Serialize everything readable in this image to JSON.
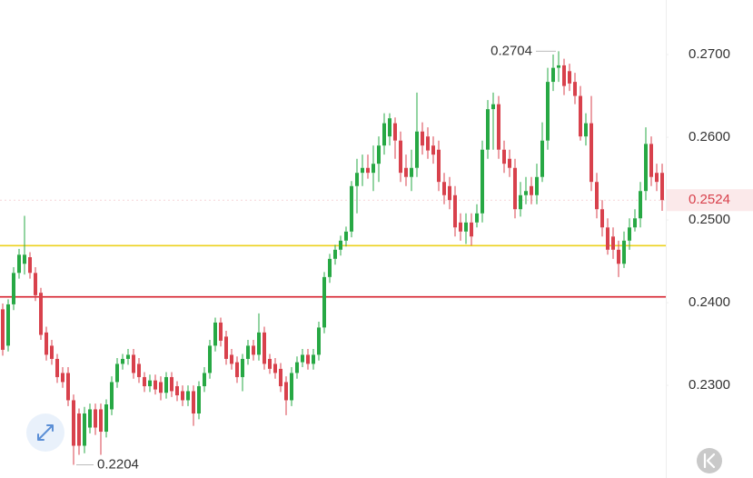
{
  "chart_data": {
    "type": "candlestick",
    "up_color": "#27a844",
    "down_color": "#d8414c",
    "ylim": [
      0.2188,
      0.2766
    ],
    "yticks": [
      {
        "value": 0.27,
        "label": "0.2700"
      },
      {
        "value": 0.26,
        "label": "0.2600"
      },
      {
        "value": 0.25,
        "label": "0.2500"
      },
      {
        "value": 0.24,
        "label": "0.2400"
      },
      {
        "value": 0.23,
        "label": "0.2300"
      }
    ],
    "levels": [
      {
        "value": 0.2469,
        "color": "#ecd21c"
      },
      {
        "value": 0.2407,
        "color": "#d6202c"
      }
    ],
    "last_price": {
      "value": 0.2524,
      "label": "0.2524"
    },
    "high_label": {
      "value": 0.2704,
      "label": "0.2704"
    },
    "low_label": {
      "value": 0.2204,
      "label": "0.2204"
    },
    "open": [
      0.2392,
      0.2348,
      0.2398,
      0.2436,
      0.2447,
      0.2455,
      0.2436,
      0.2412,
      0.2364,
      0.2348,
      0.2332,
      0.2315,
      0.2315,
      0.2282,
      0.2266,
      0.2227,
      0.2249,
      0.2271,
      0.2271,
      0.2244,
      0.2271,
      0.2304,
      0.2326,
      0.2332,
      0.2337,
      0.2326,
      0.231,
      0.2299,
      0.2306,
      0.2304,
      0.2291,
      0.231,
      0.2299,
      0.2293,
      0.2282,
      0.2293,
      0.2266,
      0.2299,
      0.2315,
      0.2348,
      0.2376,
      0.2359,
      0.2337,
      0.2328,
      0.231,
      0.2332,
      0.2348,
      0.2337,
      0.2364,
      0.2332,
      0.2326,
      0.232,
      0.2304,
      0.2282,
      0.2315,
      0.2328,
      0.2337,
      0.2326,
      0.2337,
      0.237,
      0.2431,
      0.2453,
      0.2464,
      0.2475,
      0.2486,
      0.2541,
      0.2557,
      0.2563,
      0.2557,
      0.2568,
      0.259,
      0.2601,
      0.2617,
      0.2596,
      0.2563,
      0.2552,
      0.2563,
      0.2607,
      0.2601,
      0.259,
      0.2585,
      0.2546,
      0.2541,
      0.253,
      0.2497,
      0.2486,
      0.2497,
      0.2497,
      0.2508,
      0.2585,
      0.2634,
      0.264,
      0.2585,
      0.2574,
      0.2563,
      0.2513,
      0.253,
      0.2541,
      0.253,
      0.2552,
      0.2596,
      0.2667,
      0.2684,
      0.2687,
      0.268,
      0.2667,
      0.265,
      0.2601,
      0.2617,
      0.2546,
      0.2513,
      0.2491,
      0.248,
      0.2464,
      0.2447,
      0.2475,
      0.2491,
      0.2502,
      0.2535,
      0.2592,
      0.2557,
      0.2557
    ],
    "high": [
      0.2399,
      0.2404,
      0.2443,
      0.2465,
      0.2505,
      0.2461,
      0.2443,
      0.2418,
      0.2371,
      0.2355,
      0.2338,
      0.2322,
      0.2322,
      0.2289,
      0.2272,
      0.2274,
      0.2278,
      0.2278,
      0.2278,
      0.2283,
      0.2311,
      0.2333,
      0.2338,
      0.2344,
      0.2344,
      0.2333,
      0.2316,
      0.2313,
      0.2313,
      0.2311,
      0.2316,
      0.2316,
      0.2305,
      0.23,
      0.23,
      0.23,
      0.2305,
      0.2322,
      0.2355,
      0.2382,
      0.2382,
      0.2366,
      0.2344,
      0.2335,
      0.2338,
      0.2355,
      0.2355,
      0.2387,
      0.2371,
      0.2338,
      0.2333,
      0.2327,
      0.2311,
      0.2322,
      0.2335,
      0.2344,
      0.2344,
      0.2344,
      0.2377,
      0.2437,
      0.2459,
      0.247,
      0.2481,
      0.2492,
      0.2547,
      0.2574,
      0.2579,
      0.2579,
      0.259,
      0.2601,
      0.2629,
      0.2629,
      0.2624,
      0.2607,
      0.2579,
      0.2585,
      0.2654,
      0.2618,
      0.2612,
      0.2601,
      0.2596,
      0.2557,
      0.2552,
      0.2541,
      0.2508,
      0.2508,
      0.2508,
      0.2519,
      0.2596,
      0.2645,
      0.2654,
      0.265,
      0.2596,
      0.2585,
      0.2574,
      0.2546,
      0.2552,
      0.2552,
      0.2568,
      0.2618,
      0.2684,
      0.27,
      0.2704,
      0.2695,
      0.2689,
      0.2678,
      0.2662,
      0.2629,
      0.265,
      0.2557,
      0.2524,
      0.2502,
      0.2491,
      0.2475,
      0.2486,
      0.2502,
      0.2513,
      0.2546,
      0.2612,
      0.2601,
      0.2568,
      0.2568
    ],
    "low": [
      0.2336,
      0.2341,
      0.2391,
      0.2429,
      0.2434,
      0.2429,
      0.2402,
      0.2355,
      0.233,
      0.2325,
      0.2303,
      0.2297,
      0.2275,
      0.2204,
      0.2216,
      0.2218,
      0.2242,
      0.224,
      0.2216,
      0.2237,
      0.2264,
      0.2297,
      0.2319,
      0.2325,
      0.2308,
      0.2303,
      0.2292,
      0.2292,
      0.2289,
      0.2282,
      0.2284,
      0.2286,
      0.2281,
      0.2275,
      0.2275,
      0.2251,
      0.2259,
      0.2292,
      0.2308,
      0.2341,
      0.2347,
      0.2325,
      0.2319,
      0.2303,
      0.2293,
      0.2325,
      0.233,
      0.233,
      0.2319,
      0.2314,
      0.2308,
      0.2292,
      0.2264,
      0.2275,
      0.2308,
      0.2322,
      0.2319,
      0.2319,
      0.233,
      0.2363,
      0.2424,
      0.2446,
      0.2457,
      0.2468,
      0.2479,
      0.2508,
      0.2541,
      0.255,
      0.2535,
      0.2546,
      0.2579,
      0.259,
      0.2574,
      0.2546,
      0.2541,
      0.2535,
      0.2552,
      0.2579,
      0.2574,
      0.2568,
      0.2535,
      0.2519,
      0.2513,
      0.248,
      0.2475,
      0.2471,
      0.2469,
      0.2491,
      0.2497,
      0.2574,
      0.2585,
      0.2574,
      0.2557,
      0.2552,
      0.2502,
      0.2504,
      0.2519,
      0.2519,
      0.2519,
      0.2546,
      0.2585,
      0.2656,
      0.2667,
      0.2651,
      0.2656,
      0.264,
      0.2596,
      0.259,
      0.2535,
      0.2502,
      0.248,
      0.2458,
      0.2453,
      0.2431,
      0.2442,
      0.2464,
      0.2486,
      0.2491,
      0.2524,
      0.2541,
      0.2535,
      0.2511
    ],
    "close": [
      0.2343,
      0.2398,
      0.2436,
      0.2458,
      0.2458,
      0.2436,
      0.2409,
      0.2361,
      0.2337,
      0.2332,
      0.231,
      0.2304,
      0.2282,
      0.2227,
      0.2227,
      0.2266,
      0.2271,
      0.2249,
      0.2244,
      0.2277,
      0.2304,
      0.2326,
      0.2332,
      0.2337,
      0.2315,
      0.231,
      0.2299,
      0.2306,
      0.2295,
      0.2291,
      0.231,
      0.2293,
      0.2288,
      0.2282,
      0.2293,
      0.2266,
      0.2299,
      0.2315,
      0.2348,
      0.2376,
      0.2354,
      0.2332,
      0.2326,
      0.231,
      0.2332,
      0.2348,
      0.2337,
      0.2364,
      0.2326,
      0.232,
      0.2315,
      0.2299,
      0.2282,
      0.2315,
      0.2328,
      0.2337,
      0.2326,
      0.2337,
      0.237,
      0.2431,
      0.2453,
      0.2464,
      0.2475,
      0.2486,
      0.2541,
      0.2557,
      0.2563,
      0.2557,
      0.2568,
      0.259,
      0.2617,
      0.2623,
      0.2596,
      0.2557,
      0.2552,
      0.2563,
      0.2607,
      0.259,
      0.2584,
      0.2579,
      0.2546,
      0.253,
      0.2524,
      0.2491,
      0.2486,
      0.2497,
      0.248,
      0.2508,
      0.2585,
      0.2634,
      0.264,
      0.2585,
      0.2568,
      0.2563,
      0.2513,
      0.253,
      0.2535,
      0.253,
      0.2552,
      0.2596,
      0.2667,
      0.2684,
      0.2687,
      0.2662,
      0.2665,
      0.265,
      0.2601,
      0.2617,
      0.2546,
      0.2513,
      0.2491,
      0.2464,
      0.2464,
      0.2447,
      0.2475,
      0.2491,
      0.2502,
      0.2535,
      0.2592,
      0.2552,
      0.2546,
      0.2524
    ]
  }
}
